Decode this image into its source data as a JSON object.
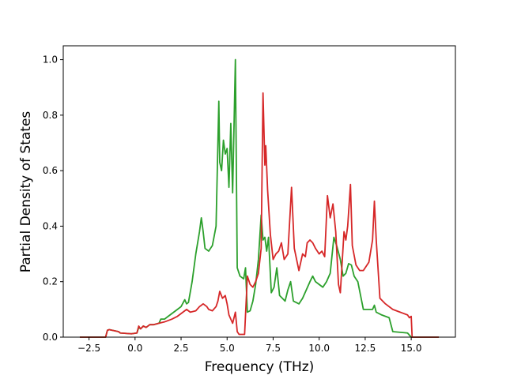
{
  "chart_data": {
    "type": "line",
    "title": "",
    "xlabel": "Frequency (THz)",
    "ylabel": "Partial Density of States",
    "xlim": [
      -3.9,
      17.4
    ],
    "ylim": [
      0.0,
      1.05
    ],
    "x_ticks": [
      -2.5,
      0.0,
      2.5,
      5.0,
      7.5,
      10.0,
      12.5,
      15.0
    ],
    "x_tick_labels": [
      "−2.5",
      "0.0",
      "2.5",
      "5.0",
      "7.5",
      "10.0",
      "12.5",
      "15.0"
    ],
    "y_ticks": [
      0.0,
      0.2,
      0.4,
      0.6,
      0.8,
      1.0
    ],
    "y_tick_labels": [
      "0.0",
      "0.2",
      "0.4",
      "0.6",
      "0.8",
      "1.0"
    ],
    "grid": false,
    "legend": "none",
    "series": [
      {
        "color": "#2ca02c",
        "x": [
          -3.0,
          -1.6,
          -1.5,
          -1.4,
          -0.9,
          -0.8,
          -0.2,
          0.1,
          0.2,
          0.3,
          0.45,
          0.6,
          0.8,
          1.0,
          1.3,
          1.4,
          1.6,
          1.8,
          2.0,
          2.3,
          2.5,
          2.7,
          2.8,
          2.9,
          3.1,
          3.3,
          3.5,
          3.6,
          3.7,
          3.8,
          4.0,
          4.2,
          4.4,
          4.55,
          4.6,
          4.7,
          4.8,
          4.9,
          5.0,
          5.1,
          5.2,
          5.3,
          5.45,
          5.55,
          5.65,
          5.7,
          5.9,
          6.0,
          6.1,
          6.25,
          6.4,
          6.55,
          6.7,
          6.85,
          6.95,
          7.05,
          7.15,
          7.25,
          7.4,
          7.55,
          7.7,
          7.85,
          8.0,
          8.15,
          8.3,
          8.45,
          8.6,
          8.9,
          9.1,
          9.3,
          9.5,
          9.65,
          9.8,
          10.0,
          10.2,
          10.4,
          10.6,
          10.8,
          10.95,
          11.15,
          11.3,
          11.45,
          11.6,
          11.75,
          11.9,
          12.1,
          12.4,
          12.7,
          12.9,
          13.0,
          13.1,
          13.4,
          13.8,
          14.0,
          14.8,
          15.0,
          16.5
        ],
        "y": [
          0.0,
          0.0,
          0.025,
          0.027,
          0.02,
          0.015,
          0.012,
          0.015,
          0.035,
          0.03,
          0.04,
          0.035,
          0.045,
          0.045,
          0.05,
          0.065,
          0.065,
          0.075,
          0.085,
          0.1,
          0.11,
          0.135,
          0.12,
          0.125,
          0.2,
          0.3,
          0.38,
          0.43,
          0.38,
          0.32,
          0.31,
          0.33,
          0.4,
          0.85,
          0.63,
          0.6,
          0.71,
          0.66,
          0.68,
          0.54,
          0.77,
          0.52,
          1.0,
          0.25,
          0.23,
          0.22,
          0.21,
          0.25,
          0.09,
          0.095,
          0.13,
          0.19,
          0.28,
          0.44,
          0.35,
          0.36,
          0.31,
          0.36,
          0.16,
          0.18,
          0.25,
          0.15,
          0.14,
          0.13,
          0.17,
          0.2,
          0.13,
          0.12,
          0.14,
          0.17,
          0.2,
          0.22,
          0.2,
          0.19,
          0.18,
          0.2,
          0.23,
          0.36,
          0.33,
          0.28,
          0.22,
          0.23,
          0.265,
          0.26,
          0.22,
          0.2,
          0.1,
          0.1,
          0.1,
          0.115,
          0.09,
          0.08,
          0.07,
          0.02,
          0.015,
          0.0,
          0.0
        ]
      },
      {
        "color": "#d62728",
        "x": [
          -3.0,
          -1.6,
          -1.5,
          -1.4,
          -0.9,
          -0.8,
          -0.2,
          0.1,
          0.2,
          0.3,
          0.45,
          0.6,
          0.8,
          1.0,
          1.3,
          1.6,
          1.8,
          2.0,
          2.3,
          2.5,
          2.7,
          2.8,
          3.0,
          3.3,
          3.5,
          3.7,
          3.9,
          4.0,
          4.2,
          4.4,
          4.5,
          4.6,
          4.75,
          4.9,
          5.0,
          5.1,
          5.3,
          5.45,
          5.55,
          5.65,
          5.75,
          5.95,
          6.1,
          6.25,
          6.4,
          6.55,
          6.7,
          6.85,
          6.95,
          7.05,
          7.1,
          7.2,
          7.35,
          7.5,
          7.65,
          7.8,
          7.95,
          8.1,
          8.3,
          8.5,
          8.65,
          8.9,
          9.1,
          9.25,
          9.35,
          9.5,
          9.65,
          9.8,
          10.0,
          10.15,
          10.3,
          10.45,
          10.6,
          10.75,
          10.9,
          11.05,
          11.15,
          11.35,
          11.45,
          11.55,
          11.7,
          11.8,
          12.0,
          12.2,
          12.4,
          12.7,
          12.9,
          13.0,
          13.1,
          13.3,
          13.6,
          14.0,
          14.4,
          14.8,
          14.9,
          15.0,
          15.05,
          16.5
        ],
        "y": [
          0.0,
          0.0,
          0.025,
          0.027,
          0.02,
          0.015,
          0.012,
          0.015,
          0.04,
          0.03,
          0.04,
          0.035,
          0.045,
          0.045,
          0.05,
          0.055,
          0.06,
          0.065,
          0.075,
          0.085,
          0.095,
          0.1,
          0.09,
          0.095,
          0.11,
          0.12,
          0.11,
          0.1,
          0.095,
          0.11,
          0.13,
          0.165,
          0.14,
          0.15,
          0.12,
          0.08,
          0.05,
          0.09,
          0.02,
          0.01,
          0.01,
          0.01,
          0.22,
          0.19,
          0.18,
          0.2,
          0.23,
          0.32,
          0.88,
          0.62,
          0.69,
          0.53,
          0.37,
          0.28,
          0.3,
          0.31,
          0.34,
          0.28,
          0.3,
          0.54,
          0.32,
          0.24,
          0.3,
          0.29,
          0.34,
          0.35,
          0.34,
          0.32,
          0.3,
          0.31,
          0.29,
          0.51,
          0.43,
          0.48,
          0.38,
          0.19,
          0.16,
          0.38,
          0.35,
          0.4,
          0.55,
          0.33,
          0.26,
          0.24,
          0.24,
          0.27,
          0.35,
          0.49,
          0.35,
          0.14,
          0.12,
          0.1,
          0.09,
          0.08,
          0.07,
          0.075,
          0.0,
          0.0
        ]
      }
    ]
  }
}
